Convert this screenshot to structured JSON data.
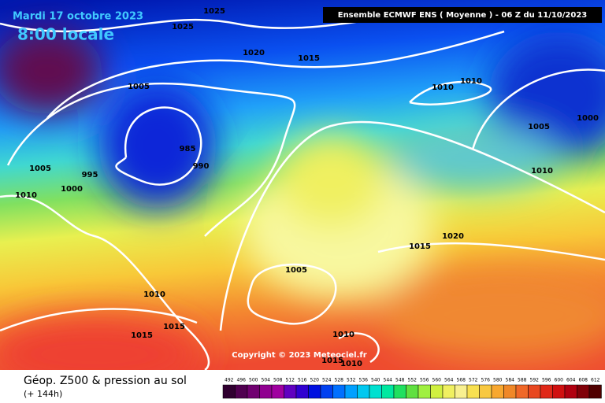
{
  "header": {
    "date": "Mardi 17 octobre 2023",
    "time": "8:00 locale",
    "model": "Ensemble ECMWF ENS  ( Moyenne )  -  06 Z du 11/10/2023"
  },
  "map": {
    "isobar_labels": [
      "1025",
      "1025",
      "1020",
      "1015",
      "1005",
      "1010",
      "1010",
      "1005",
      "1000",
      "985",
      "990",
      "1005",
      "995",
      "1000",
      "1010",
      "1010",
      "1020",
      "1015",
      "1005",
      "1010",
      "1015",
      "1015",
      "1010",
      "1015",
      "1010"
    ],
    "copyright": "Copyright © 2023 Meteociel.fr"
  },
  "footer": {
    "title": "Géop. Z500 & pression au sol",
    "subtitle": "(+ 144h)",
    "legend": [
      492,
      496,
      500,
      504,
      508,
      512,
      516,
      520,
      524,
      528,
      532,
      536,
      540,
      544,
      548,
      552,
      556,
      560,
      564,
      568,
      572,
      576,
      580,
      584,
      588,
      592,
      596,
      600,
      604,
      608,
      612
    ]
  }
}
